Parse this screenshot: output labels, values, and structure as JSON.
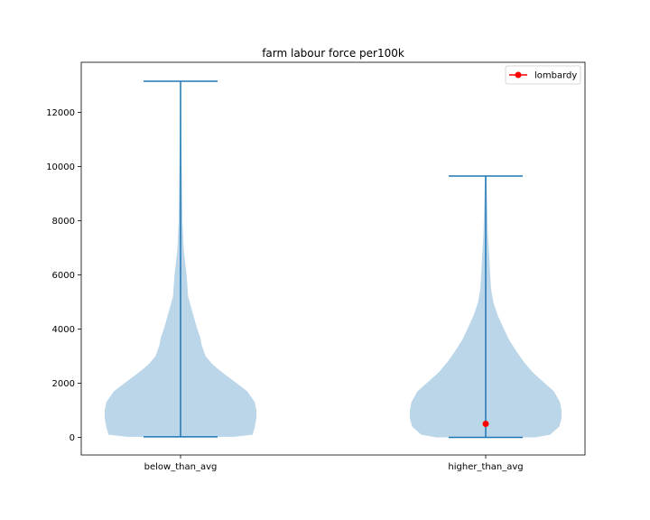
{
  "chart_data": {
    "type": "violin",
    "title": "farm labour force per100k",
    "xlabel": "",
    "ylabel": "",
    "categories": [
      "below_than_avg",
      "higher_than_avg"
    ],
    "ylim": [
      -650,
      13850
    ],
    "yticks": [
      0,
      2000,
      4000,
      6000,
      8000,
      10000,
      12000
    ],
    "ytick_labels": [
      "0",
      "2000",
      "4000",
      "6000",
      "8000",
      "10000",
      "12000"
    ],
    "grid": false,
    "legend_position": "top-right",
    "violins": [
      {
        "category": "below_than_avg",
        "min": 20,
        "max": 13150,
        "density": [
          [
            20,
            0.7
          ],
          [
            100,
            0.95
          ],
          [
            400,
            0.98
          ],
          [
            700,
            1.0
          ],
          [
            1000,
            1.0
          ],
          [
            1300,
            0.98
          ],
          [
            1700,
            0.88
          ],
          [
            2000,
            0.74
          ],
          [
            2400,
            0.55
          ],
          [
            2700,
            0.42
          ],
          [
            3000,
            0.33
          ],
          [
            3400,
            0.28
          ],
          [
            3700,
            0.26
          ],
          [
            4000,
            0.22
          ],
          [
            4600,
            0.16
          ],
          [
            5200,
            0.1
          ],
          [
            6000,
            0.08
          ],
          [
            6500,
            0.06
          ],
          [
            7000,
            0.04
          ],
          [
            8000,
            0.025
          ],
          [
            9000,
            0.02
          ],
          [
            10000,
            0.015
          ],
          [
            11000,
            0.01
          ],
          [
            12000,
            0.008
          ],
          [
            13150,
            0.005
          ]
        ]
      },
      {
        "category": "higher_than_avg",
        "min": 0,
        "max": 9650,
        "density": [
          [
            0,
            0.65
          ],
          [
            100,
            0.85
          ],
          [
            400,
            0.97
          ],
          [
            700,
            1.0
          ],
          [
            1000,
            1.0
          ],
          [
            1300,
            0.98
          ],
          [
            1700,
            0.9
          ],
          [
            2000,
            0.78
          ],
          [
            2400,
            0.62
          ],
          [
            2800,
            0.5
          ],
          [
            3200,
            0.4
          ],
          [
            3600,
            0.31
          ],
          [
            4000,
            0.24
          ],
          [
            4500,
            0.16
          ],
          [
            5000,
            0.1
          ],
          [
            5500,
            0.07
          ],
          [
            6000,
            0.06
          ],
          [
            6500,
            0.05
          ],
          [
            7000,
            0.04
          ],
          [
            7500,
            0.03
          ],
          [
            8000,
            0.025
          ],
          [
            9000,
            0.015
          ],
          [
            9650,
            0.01
          ]
        ]
      }
    ],
    "points": [
      {
        "name": "lombardy",
        "category": "higher_than_avg",
        "value": 500
      }
    ],
    "legend": [
      {
        "label": "lombardy",
        "color": "#ff0000",
        "marker": "circle"
      }
    ]
  },
  "colors": {
    "violin_fill": "#1f77b4",
    "violin_stroke": "#1f77b4",
    "point": "#ff0000",
    "axis": "#000000",
    "background": "#ffffff"
  }
}
